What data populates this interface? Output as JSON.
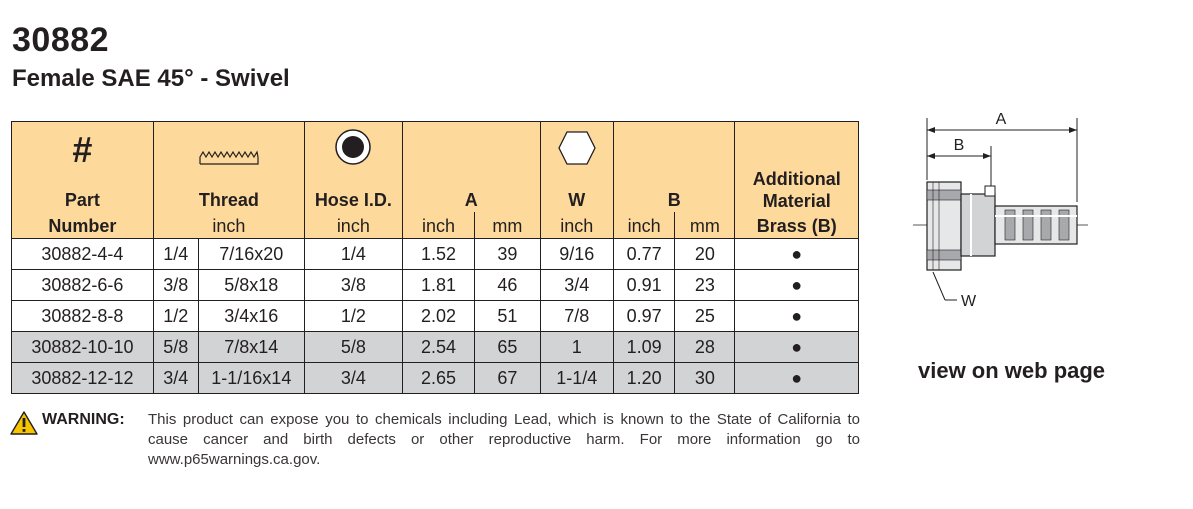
{
  "title": "30882",
  "subtitle": "Female SAE 45° - Swivel",
  "table": {
    "headers": {
      "part_symbol": "#",
      "part_line1": "Part",
      "part_line2": "Number",
      "thread_line1": "Thread",
      "thread_line2": "inch",
      "hose_line1": "Hose I.D.",
      "hose_line2": "inch",
      "a_label": "A",
      "a_inch": "inch",
      "a_mm": "mm",
      "w_label": "W",
      "w_inch": "inch",
      "b_label": "B",
      "b_inch": "inch",
      "b_mm": "mm",
      "additional_line1": "Additional",
      "additional_line2": "Material",
      "additional_line3": "Brass (B)"
    },
    "rows": [
      {
        "part": "30882-4-4",
        "thread_size": "1/4",
        "thread": "7/16x20",
        "hose_id": "1/4",
        "a_inch": "1.52",
        "a_mm": "39",
        "w": "9/16",
        "b_inch": "0.77",
        "b_mm": "20",
        "brass": "●",
        "shaded": false
      },
      {
        "part": "30882-6-6",
        "thread_size": "3/8",
        "thread": "5/8x18",
        "hose_id": "3/8",
        "a_inch": "1.81",
        "a_mm": "46",
        "w": "3/4",
        "b_inch": "0.91",
        "b_mm": "23",
        "brass": "●",
        "shaded": false
      },
      {
        "part": "30882-8-8",
        "thread_size": "1/2",
        "thread": "3/4x16",
        "hose_id": "1/2",
        "a_inch": "2.02",
        "a_mm": "51",
        "w": "7/8",
        "b_inch": "0.97",
        "b_mm": "25",
        "brass": "●",
        "shaded": false
      },
      {
        "part": "30882-10-10",
        "thread_size": "5/8",
        "thread": "7/8x14",
        "hose_id": "5/8",
        "a_inch": "2.54",
        "a_mm": "65",
        "w": "1",
        "b_inch": "1.09",
        "b_mm": "28",
        "brass": "●",
        "shaded": true
      },
      {
        "part": "30882-12-12",
        "thread_size": "3/4",
        "thread": "1-1/16x14",
        "hose_id": "3/4",
        "a_inch": "2.65",
        "a_mm": "67",
        "w": "1-1/4",
        "b_inch": "1.20",
        "b_mm": "30",
        "brass": "●",
        "shaded": true
      }
    ]
  },
  "drawing": {
    "label_a": "A",
    "label_b": "B",
    "label_w": "W"
  },
  "view_link": "view on web page",
  "warning": {
    "label": "WARNING:",
    "text": "This product can expose you to chemicals including Lead, which is known to the State of California to cause cancer and birth defects or other reproductive harm.  For more information go to www.p65warnings.ca.gov."
  },
  "colors": {
    "header_bg": "#fdd99b",
    "shaded_row": "#d2d3d5",
    "warning_yellow": "#f7c500"
  }
}
